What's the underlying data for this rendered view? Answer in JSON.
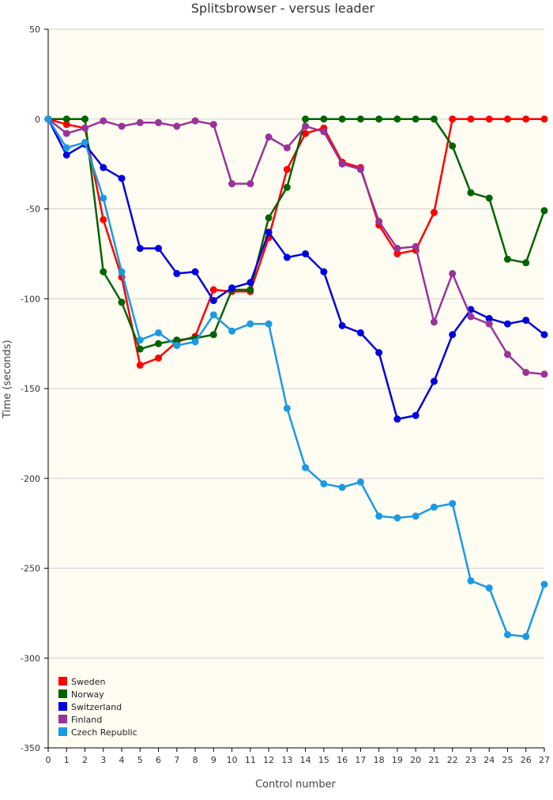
{
  "chart_data": {
    "type": "line",
    "title": "Splitsbrowser - versus leader",
    "xlabel": "Control number",
    "ylabel": "Time (seconds)",
    "ylim": [
      -350,
      50
    ],
    "yticks": [
      50,
      0,
      -50,
      -100,
      -150,
      -200,
      -250,
      -300,
      -350
    ],
    "xlim": [
      0,
      27
    ],
    "xtick_labels": [
      "0",
      "1",
      "2",
      "3",
      "4",
      "5",
      "6",
      "7",
      "8",
      "9",
      "10",
      "11",
      "12",
      "13",
      "14",
      "15",
      "16",
      "17",
      "18",
      "19",
      "20",
      "21",
      "22",
      "23",
      "24",
      "25",
      "26",
      "27"
    ],
    "grid": "horizontal",
    "legend_position": "bottom-left",
    "series": [
      {
        "name": "Sweden",
        "color": "#ff0000",
        "x": [
          0,
          1,
          2,
          3,
          4,
          5,
          6,
          7,
          8,
          9,
          10,
          11,
          12,
          13,
          14,
          15,
          16,
          17,
          18,
          19,
          20,
          21,
          22,
          23,
          24,
          25,
          26,
          27
        ],
        "y": [
          0,
          -3,
          -5,
          -56,
          -88,
          -137,
          -133,
          -124,
          -121,
          -95,
          -96,
          -96,
          -66,
          -28,
          -8,
          -5,
          -24,
          -27,
          -59,
          -75,
          -73,
          -52,
          0,
          0,
          0,
          0,
          0,
          0
        ]
      },
      {
        "name": "Norway",
        "color": "#006400",
        "x": [
          0,
          1,
          2,
          3,
          4,
          5,
          6,
          7,
          8,
          9,
          10,
          11,
          12,
          13,
          14,
          15,
          16,
          17,
          18,
          19,
          20,
          21,
          22,
          23,
          24,
          25,
          26,
          27
        ],
        "y": [
          0,
          0,
          0,
          -85,
          -102,
          -128,
          -125,
          -123,
          -122,
          -120,
          -95,
          -95,
          -55,
          -38,
          0,
          0,
          0,
          0,
          0,
          0,
          0,
          0,
          -15,
          -41,
          -44,
          -78,
          -80,
          -51
        ]
      },
      {
        "name": "Switzerland",
        "color": "#0000e0",
        "x": [
          0,
          1,
          2,
          3,
          4,
          5,
          6,
          7,
          8,
          9,
          10,
          11,
          12,
          13,
          14,
          15,
          16,
          17,
          18,
          19,
          20,
          21,
          22,
          23,
          24,
          25,
          26,
          27
        ],
        "y": [
          0,
          -20,
          -14,
          -27,
          -33,
          -72,
          -72,
          -86,
          -85,
          -101,
          -94,
          -91,
          -63,
          -77,
          -75,
          -85,
          -115,
          -119,
          -130,
          -167,
          -165,
          -146,
          -120,
          -106,
          -111,
          -114,
          -112,
          -120
        ]
      },
      {
        "name": "Finland",
        "color": "#993399",
        "x": [
          0,
          1,
          2,
          3,
          4,
          5,
          6,
          7,
          8,
          9,
          10,
          11,
          12,
          13,
          14,
          15,
          16,
          17,
          18,
          19,
          20,
          21,
          22,
          23,
          24,
          25,
          26,
          27
        ],
        "y": [
          0,
          -8,
          -5,
          -1,
          -4,
          -2,
          -2,
          -4,
          -1,
          -3,
          -36,
          -36,
          -10,
          -16,
          -4,
          -7,
          -25,
          -28,
          -57,
          -72,
          -71,
          -113,
          -86,
          -110,
          -114,
          -131,
          -141,
          -142
        ]
      },
      {
        "name": "Czech Republic",
        "color": "#1a9ae6",
        "x": [
          0,
          1,
          2,
          3,
          4,
          5,
          6,
          7,
          8,
          9,
          10,
          11,
          12,
          13,
          14,
          15,
          16,
          17,
          18,
          19,
          20,
          21,
          22,
          23,
          24,
          25,
          26,
          27
        ],
        "y": [
          0,
          -16,
          -13,
          -44,
          -85,
          -123,
          -119,
          -126,
          -124,
          -109,
          -118,
          -114,
          -114,
          -161,
          -194,
          -203,
          -205,
          -202,
          -221,
          -222,
          -221,
          -216,
          -214,
          -257,
          -261,
          -287,
          -288,
          -259
        ]
      }
    ]
  }
}
